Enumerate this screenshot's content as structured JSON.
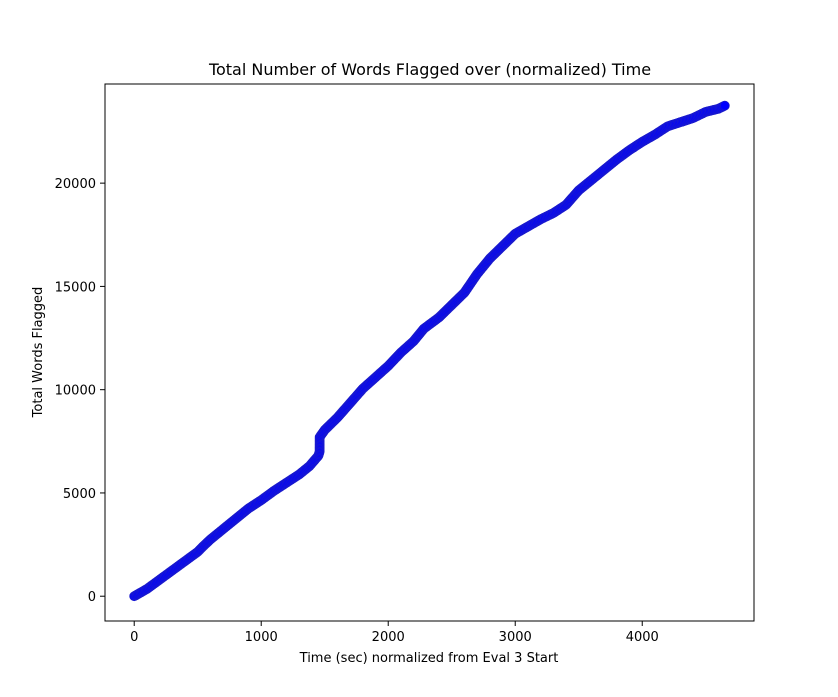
{
  "chart_data": {
    "type": "scatter",
    "title": "Total Number of Words Flagged over (normalized) Time",
    "xlabel": "Time (sec) normalized from Eval 3 Start",
    "ylabel": "Total Words Flagged",
    "xlim": [
      -230,
      4880
    ],
    "ylim": [
      -1200,
      24800
    ],
    "xticks": [
      0,
      1000,
      2000,
      3000,
      4000
    ],
    "yticks": [
      0,
      5000,
      10000,
      15000,
      20000
    ],
    "xtick_labels": [
      "0",
      "1000",
      "2000",
      "3000",
      "4000"
    ],
    "ytick_labels": [
      "0",
      "5000",
      "10000",
      "15000",
      "20000"
    ],
    "grid": false,
    "legend": "none",
    "marker_color": "#0000ff",
    "marker_edge_color": "#1a1acc",
    "series": [
      {
        "points": [
          [
            0,
            0
          ],
          [
            100,
            350
          ],
          [
            200,
            800
          ],
          [
            300,
            1250
          ],
          [
            400,
            1700
          ],
          [
            500,
            2150
          ],
          [
            540,
            2400
          ],
          [
            600,
            2750
          ],
          [
            700,
            3250
          ],
          [
            800,
            3750
          ],
          [
            900,
            4250
          ],
          [
            1000,
            4650
          ],
          [
            1100,
            5100
          ],
          [
            1200,
            5500
          ],
          [
            1300,
            5900
          ],
          [
            1380,
            6300
          ],
          [
            1450,
            6800
          ],
          [
            1460,
            7000
          ],
          [
            1460,
            7350
          ],
          [
            1460,
            7700
          ],
          [
            1500,
            8050
          ],
          [
            1600,
            8650
          ],
          [
            1700,
            9350
          ],
          [
            1800,
            10050
          ],
          [
            1900,
            10600
          ],
          [
            2000,
            11150
          ],
          [
            2100,
            11800
          ],
          [
            2200,
            12350
          ],
          [
            2280,
            12950
          ],
          [
            2400,
            13500
          ],
          [
            2500,
            14100
          ],
          [
            2600,
            14700
          ],
          [
            2700,
            15600
          ],
          [
            2800,
            16350
          ],
          [
            2900,
            16950
          ],
          [
            3000,
            17550
          ],
          [
            3100,
            17900
          ],
          [
            3200,
            18250
          ],
          [
            3300,
            18550
          ],
          [
            3400,
            18950
          ],
          [
            3500,
            19650
          ],
          [
            3600,
            20150
          ],
          [
            3700,
            20650
          ],
          [
            3800,
            21150
          ],
          [
            3900,
            21600
          ],
          [
            4000,
            22000
          ],
          [
            4100,
            22350
          ],
          [
            4200,
            22750
          ],
          [
            4300,
            22950
          ],
          [
            4400,
            23150
          ],
          [
            4500,
            23450
          ],
          [
            4600,
            23600
          ],
          [
            4650,
            23750
          ]
        ]
      }
    ]
  }
}
